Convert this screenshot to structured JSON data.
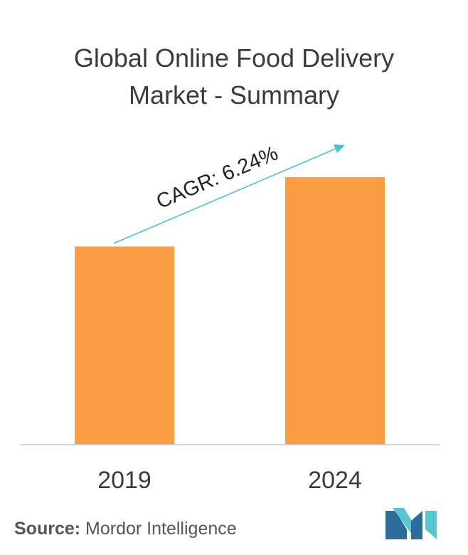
{
  "title_line1": "Global Online Food Delivery",
  "title_line2": "Market - Summary",
  "source_label": "Source:",
  "source_text": "Mordor Intelligence",
  "colors": {
    "bar": "#fd9d45",
    "arrow": "#42c2cb",
    "axis": "#cccccc",
    "text": "#3b3b3b",
    "logo_dark": "#2b6e9a",
    "logo_light": "#57c6d1"
  },
  "chart_data": {
    "type": "bar",
    "title": "Global Online Food Delivery Market - Summary",
    "categories": [
      "2019",
      "2024"
    ],
    "values": [
      100,
      135
    ],
    "annotation": "CAGR: 6.24%",
    "xlabel": "",
    "ylabel": "",
    "ylim": [
      0,
      140
    ],
    "grid": false,
    "legend": "none"
  }
}
